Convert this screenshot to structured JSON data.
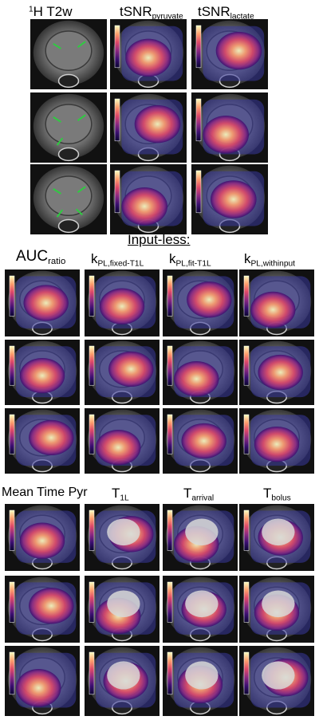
{
  "section1": {
    "headers": [
      {
        "main": "H T2w",
        "sup": "1",
        "sub": ""
      },
      {
        "main": "tSNR",
        "sup": "",
        "sub": "pyruvate"
      },
      {
        "main": "tSNR",
        "sup": "",
        "sub": "lactate"
      }
    ],
    "arrow_color": "#2ecc40"
  },
  "section2": {
    "group_title": "Input-less:",
    "headers": [
      {
        "main": "AUC",
        "sub": "ratio"
      },
      {
        "main": "k",
        "sub": "PL,fixed-T1L"
      },
      {
        "main": "k",
        "sub": "PL,fit-T1L"
      },
      {
        "main": "k",
        "sub": "PL,withinput"
      }
    ]
  },
  "section3": {
    "headers": [
      {
        "main": "Mean Time Pyr",
        "sub": ""
      },
      {
        "main": "T",
        "sub": "1L"
      },
      {
        "main": "T",
        "sub": "arrival"
      },
      {
        "main": "T",
        "sub": "bolus"
      }
    ]
  },
  "colors": {
    "colormap": [
      "#0b0530",
      "#3b0f70",
      "#8c2981",
      "#de4968",
      "#fe9f6d",
      "#fcfdbf"
    ],
    "overlay_cool": "#3a3aa0",
    "overlay_hot": "#ffd24a"
  }
}
